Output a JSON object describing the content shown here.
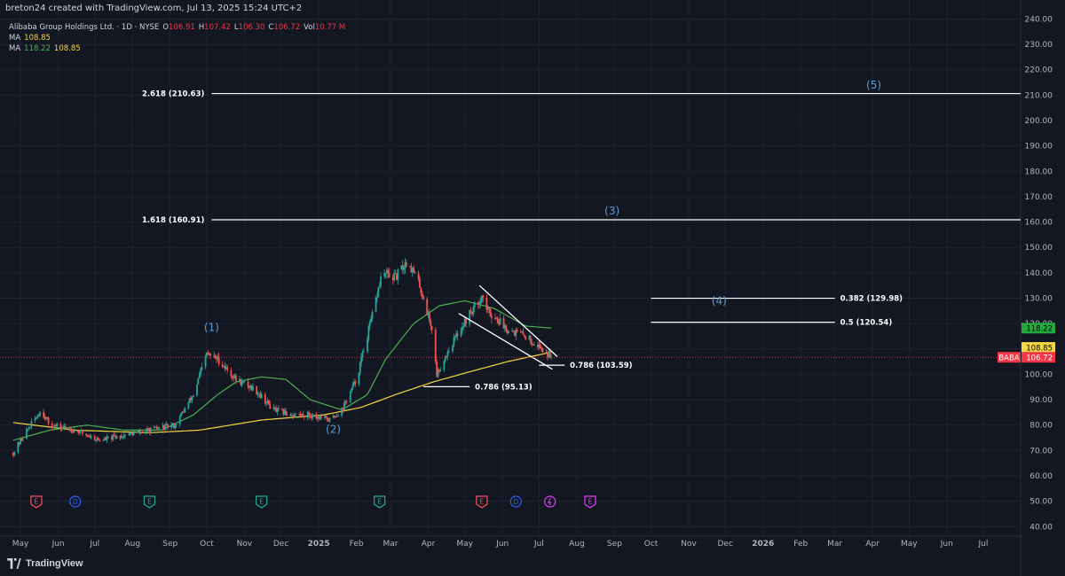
{
  "header": {
    "credit": "breton24 created with TradingView.com, Jul 13, 2025 15:24 UTC+2"
  },
  "legend": {
    "symbol": "Alibaba Group Holdings Ltd. · 1D · NYSE",
    "open_label": "O",
    "open": "106.91",
    "high_label": "H",
    "high": "107.42",
    "low_label": "L",
    "low": "106.30",
    "close_label": "C",
    "close": "106.72",
    "vol_label": "Vol",
    "vol": "10.77 M",
    "ma1_label": "MA",
    "ma1_value": "108.85",
    "ma2_label": "MA",
    "ma2_value_a": "118.22",
    "ma2_value_b": "108.85"
  },
  "footer": {
    "brand": "TradingView"
  },
  "colors": {
    "background": "#131722",
    "grid": "#1e222d",
    "text": "#d1d4dc",
    "up": "#26a69a",
    "down": "#ef5350",
    "ma_fast": "#4caf50",
    "ma_slow": "#f5d742",
    "wave_label": "#5b9bd5",
    "price_tag": "#f23645"
  },
  "chart_data": {
    "type": "candlestick",
    "title": "Alibaba Group Holdings Ltd. · 1D · NYSE",
    "ylim": [
      38,
      244
    ],
    "y_ticks": [
      "240.00",
      "230.00",
      "220.00",
      "210.00",
      "200.00",
      "190.00",
      "180.00",
      "170.00",
      "160.00",
      "150.00",
      "140.00",
      "130.00",
      "120.00",
      "110.00",
      "100.00",
      "90.00",
      "80.00",
      "70.00",
      "60.00",
      "50.00",
      "40.00"
    ],
    "y_tick_values": [
      240,
      230,
      220,
      210,
      200,
      190,
      180,
      170,
      160,
      150,
      140,
      130,
      120,
      110,
      100,
      90,
      80,
      70,
      60,
      50,
      40
    ],
    "x_ticks": [
      "May",
      "Jun",
      "Jul",
      "Aug",
      "Sep",
      "Oct",
      "Nov",
      "Dec",
      "2025",
      "Feb",
      "Mar",
      "Apr",
      "May",
      "Jun",
      "Jul",
      "Aug",
      "Sep",
      "Oct",
      "Nov",
      "Dec",
      "2026",
      "Feb",
      "Mar",
      "Apr",
      "May",
      "Jun",
      "Jul"
    ],
    "x_tick_dates": [
      "2024-05-01",
      "2024-06-01",
      "2024-07-01",
      "2024-08-01",
      "2024-09-01",
      "2024-10-01",
      "2024-11-01",
      "2024-12-01",
      "2025-01-01",
      "2025-02-01",
      "2025-03-01",
      "2025-04-01",
      "2025-05-01",
      "2025-06-01",
      "2025-07-01",
      "2025-08-01",
      "2025-09-01",
      "2025-10-01",
      "2025-11-01",
      "2025-12-01",
      "2026-01-01",
      "2026-02-01",
      "2026-03-01",
      "2026-04-01",
      "2026-05-01",
      "2026-06-01",
      "2026-07-01"
    ],
    "price_keypoints": [
      [
        "2024-04-25",
        69
      ],
      [
        "2024-05-05",
        77
      ],
      [
        "2024-05-18",
        86
      ],
      [
        "2024-05-25",
        80
      ],
      [
        "2024-06-15",
        78
      ],
      [
        "2024-07-05",
        74
      ],
      [
        "2024-07-25",
        76
      ],
      [
        "2024-08-15",
        78
      ],
      [
        "2024-09-05",
        80
      ],
      [
        "2024-09-20",
        92
      ],
      [
        "2024-10-01",
        108
      ],
      [
        "2024-10-10",
        106
      ],
      [
        "2024-10-25",
        98
      ],
      [
        "2024-11-10",
        94
      ],
      [
        "2024-11-25",
        86
      ],
      [
        "2024-12-10",
        84
      ],
      [
        "2024-12-25",
        84
      ],
      [
        "2025-01-10",
        82
      ],
      [
        "2025-01-20",
        86
      ],
      [
        "2025-02-01",
        98
      ],
      [
        "2025-02-15",
        125
      ],
      [
        "2025-02-22",
        140
      ],
      [
        "2025-03-05",
        138
      ],
      [
        "2025-03-15",
        145
      ],
      [
        "2025-03-25",
        135
      ],
      [
        "2025-04-04",
        118
      ],
      [
        "2025-04-08",
        100
      ],
      [
        "2025-04-18",
        110
      ],
      [
        "2025-04-30",
        120
      ],
      [
        "2025-05-15",
        131
      ],
      [
        "2025-05-20",
        125
      ],
      [
        "2025-06-05",
        118
      ],
      [
        "2025-06-20",
        115
      ],
      [
        "2025-07-01",
        111
      ],
      [
        "2025-07-11",
        106.7
      ]
    ],
    "ma_fast_keypoints": [
      [
        "2024-04-25",
        74
      ],
      [
        "2024-05-25",
        78
      ],
      [
        "2024-06-25",
        80
      ],
      [
        "2024-07-25",
        78
      ],
      [
        "2024-08-25",
        78
      ],
      [
        "2024-09-20",
        84
      ],
      [
        "2024-10-10",
        92
      ],
      [
        "2024-10-25",
        97
      ],
      [
        "2024-11-15",
        99
      ],
      [
        "2024-12-05",
        98
      ],
      [
        "2024-12-25",
        90
      ],
      [
        "2025-01-20",
        86
      ],
      [
        "2025-02-10",
        92
      ],
      [
        "2025-02-25",
        106
      ],
      [
        "2025-03-20",
        120
      ],
      [
        "2025-04-10",
        127
      ],
      [
        "2025-05-01",
        129
      ],
      [
        "2025-05-25",
        126
      ],
      [
        "2025-06-20",
        119
      ],
      [
        "2025-07-12",
        118.2
      ]
    ],
    "ma_slow_keypoints": [
      [
        "2024-04-25",
        81
      ],
      [
        "2024-06-15",
        78
      ],
      [
        "2024-08-15",
        77
      ],
      [
        "2024-09-25",
        78
      ],
      [
        "2024-11-15",
        82
      ],
      [
        "2025-01-05",
        84
      ],
      [
        "2025-02-05",
        87
      ],
      [
        "2025-03-05",
        92
      ],
      [
        "2025-04-05",
        97
      ],
      [
        "2025-05-05",
        101
      ],
      [
        "2025-06-05",
        105
      ],
      [
        "2025-07-12",
        108.85
      ]
    ],
    "fib_levels": [
      {
        "label": "2.618 (210.63)",
        "value": 210.63,
        "from": "2024-10-05",
        "to": "2026-08-01"
      },
      {
        "label": "1.618 (160.91)",
        "value": 160.91,
        "from": "2024-10-05",
        "to": "2026-08-01"
      },
      {
        "label": "0.382 (129.98)",
        "value": 129.98,
        "from": "2025-10-01",
        "to": "2026-03-01"
      },
      {
        "label": "0.5 (120.54)",
        "value": 120.54,
        "from": "2025-10-01",
        "to": "2026-03-01"
      },
      {
        "label": "0.786 (103.59)",
        "value": 103.59,
        "from": "2025-07-01",
        "to": "2025-07-22"
      },
      {
        "label": "0.786 (95.13)",
        "value": 95.13,
        "from": "2025-03-28",
        "to": "2025-05-05"
      }
    ],
    "wedge_lines": [
      [
        [
          "2025-05-13",
          135
        ],
        [
          "2025-07-16",
          107
        ]
      ],
      [
        [
          "2025-04-26",
          124
        ],
        [
          "2025-07-12",
          102
        ]
      ]
    ],
    "wave_labels": [
      {
        "label": "(1)",
        "date": "2024-10-05",
        "value": 117
      },
      {
        "label": "(2)",
        "date": "2025-01-13",
        "value": 77
      },
      {
        "label": "(3)",
        "date": "2025-08-30",
        "value": 163
      },
      {
        "label": "(4)",
        "date": "2025-11-26",
        "value": 127.5
      },
      {
        "label": "(5)",
        "date": "2026-04-02",
        "value": 212.5
      }
    ],
    "price_tags": [
      {
        "label": "118.22",
        "value": 118.22,
        "color": "#22ab3c",
        "text_color": "#000000"
      },
      {
        "label": "108.85",
        "value": 110.6,
        "color": "#f5d742",
        "text_color": "#000000"
      },
      {
        "label": "108.85",
        "value": 106.9,
        "color": "#f5d742",
        "text_color": "#000000"
      }
    ],
    "last_price": {
      "symbol": "BABA",
      "value": 106.72,
      "label": "106.72"
    },
    "events": [
      {
        "type": "E",
        "date": "2024-05-14"
      },
      {
        "type": "D",
        "date": "2024-06-15"
      },
      {
        "type": "E",
        "date": "2024-08-15"
      },
      {
        "type": "E",
        "date": "2024-11-15"
      },
      {
        "type": "E",
        "date": "2025-02-20"
      },
      {
        "type": "E",
        "date": "2025-05-15"
      },
      {
        "type": "D",
        "date": "2025-06-12"
      },
      {
        "type": "S",
        "date": "2025-07-10"
      },
      {
        "type": "E",
        "date": "2025-08-12"
      }
    ]
  }
}
